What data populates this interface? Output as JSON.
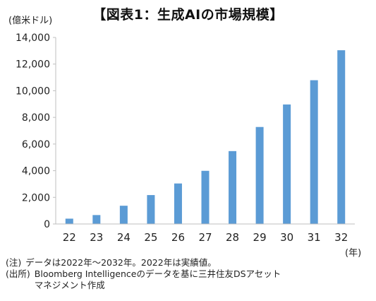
{
  "title": "【図表1：生成AIの市場規模】",
  "chart_data": {
    "type": "bar",
    "title": "【図表1：生成AIの市場規模】",
    "ylabel": "(億米ドル)",
    "xlabel": "(年)",
    "categories": [
      "22",
      "23",
      "24",
      "25",
      "26",
      "27",
      "28",
      "29",
      "30",
      "31",
      "32"
    ],
    "values": [
      400,
      670,
      1370,
      2170,
      3040,
      3990,
      5470,
      7280,
      8970,
      10790,
      13040
    ],
    "ylim": [
      0,
      14000
    ],
    "yticks": [
      0,
      2000,
      4000,
      6000,
      8000,
      10000,
      12000,
      14000
    ],
    "ytick_labels": [
      "0",
      "2,000",
      "4,000",
      "6,000",
      "8,000",
      "10,000",
      "12,000",
      "14,000"
    ],
    "grid": false,
    "bar_color": "#5b9bd5"
  },
  "notes": [
    {
      "tag": "(注)",
      "text": "データは2022年～2032年。2022年は実績値。"
    },
    {
      "tag": "(出所)",
      "text": "Bloomberg Intelligenceのデータを基に三井住友DSアセット\nマネジメント作成"
    }
  ]
}
